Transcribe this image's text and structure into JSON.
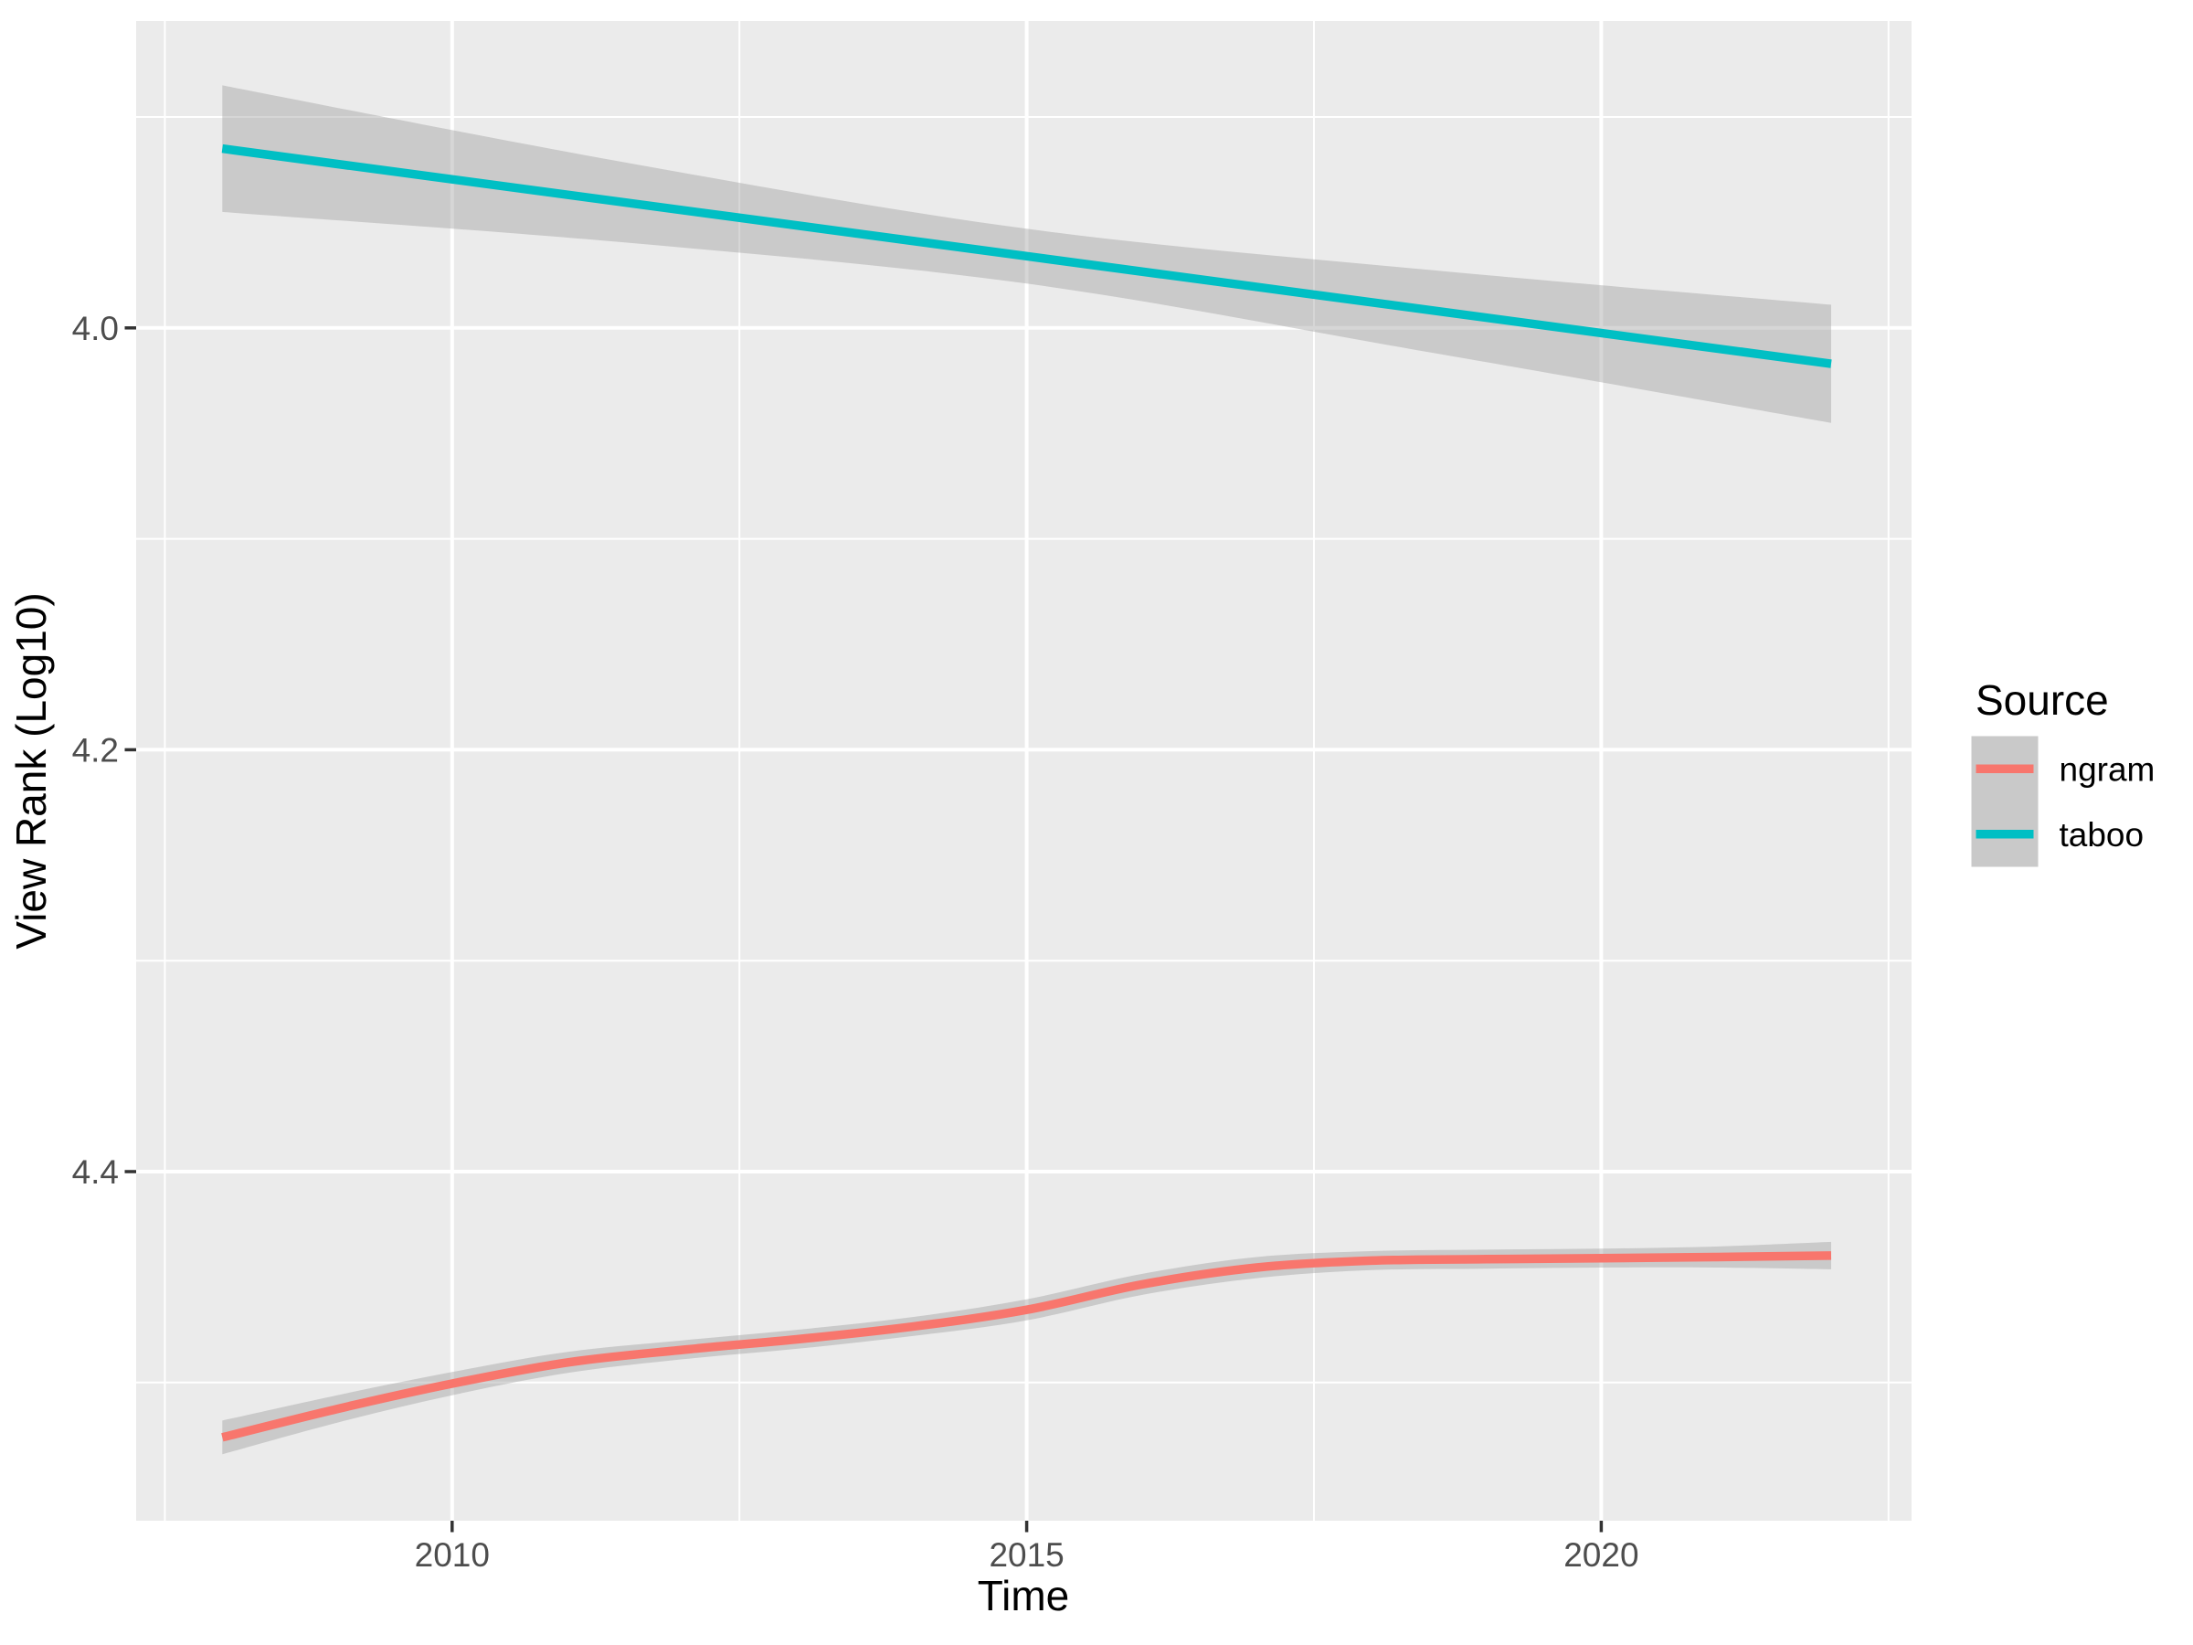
{
  "page": {
    "background": "#FFFFFF"
  },
  "chart_data": {
    "type": "line",
    "title": "",
    "xlabel": "Time",
    "ylabel": "View Rank (Log10)",
    "x_ticks": [
      {
        "value": 2010,
        "label": "2010"
      },
      {
        "value": 2015,
        "label": "2015"
      },
      {
        "value": 2020,
        "label": "2020"
      }
    ],
    "x_minor_ticks": [
      2007.5,
      2012.5,
      2017.5,
      2022.5
    ],
    "y_ticks": [
      {
        "value": 4.0,
        "label": "4.0"
      },
      {
        "value": 4.2,
        "label": "4.2"
      },
      {
        "value": 4.4,
        "label": "4.4"
      }
    ],
    "y_minor_ticks": [
      3.9,
      4.1,
      4.3,
      4.5
    ],
    "xlim": [
      2007.25,
      2022.7
    ],
    "ylim_top_to_bottom": [
      3.8545,
      4.5655
    ],
    "y_increases_downward": true,
    "grid": {
      "color": "#FFFFFF",
      "panel_background": "#EBEBEB"
    },
    "axis": {
      "tick_color": "#333333",
      "tick_label_color": "#4D4D4D",
      "title_color": "#000000"
    },
    "ribbon": {
      "color": "#999999",
      "opacity": 0.4
    },
    "legend": {
      "title": "Source",
      "position": "right",
      "key_background": "#C9C9C9",
      "entries": [
        {
          "label": "ngram",
          "color": "#F8766D"
        },
        {
          "label": "taboo",
          "color": "#00BFC4"
        }
      ]
    },
    "series": [
      {
        "name": "ngram",
        "color": "#F8766D",
        "smooth": "loess",
        "points": [
          [
            2008,
            4.526
          ],
          [
            2009,
            4.5125
          ],
          [
            2010,
            4.5005
          ],
          [
            2011,
            4.4905
          ],
          [
            2012,
            4.4845
          ],
          [
            2013,
            4.4795
          ],
          [
            2014,
            4.4735
          ],
          [
            2015,
            4.4655
          ],
          [
            2016,
            4.4535
          ],
          [
            2017,
            4.4455
          ],
          [
            2018,
            4.4422
          ],
          [
            2019,
            4.4415
          ],
          [
            2020,
            4.441
          ],
          [
            2021,
            4.4405
          ],
          [
            2022,
            4.4398
          ]
        ],
        "ribbon": [
          [
            2008,
            4.518,
            4.534
          ],
          [
            2009,
            4.506,
            4.519
          ],
          [
            2010,
            4.495,
            4.506
          ],
          [
            2011,
            4.4855,
            4.4955
          ],
          [
            2012,
            4.48,
            4.489
          ],
          [
            2013,
            4.475,
            4.484
          ],
          [
            2014,
            4.469,
            4.478
          ],
          [
            2015,
            4.4605,
            4.4705
          ],
          [
            2016,
            4.4485,
            4.4585
          ],
          [
            2017,
            4.4405,
            4.4505
          ],
          [
            2018,
            4.4377,
            4.4467
          ],
          [
            2019,
            4.437,
            4.446
          ],
          [
            2020,
            4.4365,
            4.4455
          ],
          [
            2021,
            4.4355,
            4.4455
          ],
          [
            2022,
            4.4333,
            4.4463
          ]
        ]
      },
      {
        "name": "taboo",
        "color": "#00BFC4",
        "smooth": "lm",
        "points": [
          [
            2008,
            3.915
          ],
          [
            2015,
            3.966
          ],
          [
            2022,
            4.017
          ]
        ],
        "ribbon": [
          [
            2008,
            3.885,
            3.945
          ],
          [
            2011.5,
            3.9215,
            3.9595
          ],
          [
            2015,
            3.953,
            3.979
          ],
          [
            2018.5,
            3.9725,
            4.0115
          ],
          [
            2022,
            3.989,
            4.045
          ]
        ]
      }
    ]
  }
}
